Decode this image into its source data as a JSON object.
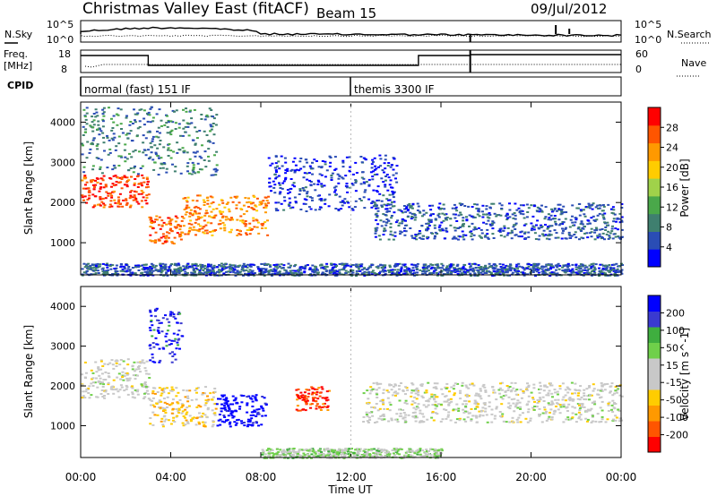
{
  "header": {
    "station": "Christmas Valley East (fitACF)",
    "beam": "Beam 15",
    "date": "09/Jul/2012"
  },
  "noise_panel": {
    "left_label": "N.Sky",
    "right_label": "N.Search",
    "left_ticks": [
      "10^5",
      "10^0"
    ],
    "right_ticks": [
      "10^5",
      "10^0"
    ]
  },
  "freq_panel": {
    "left_label_line1": "Freq.",
    "left_label_line2": "[MHz]",
    "right_label": "Nave",
    "left_ticks": [
      "18",
      "8"
    ],
    "right_ticks": [
      "60",
      "0"
    ]
  },
  "cpid_panel": {
    "label": "CPID",
    "modes": [
      {
        "name": "normal (fast) 151 IF",
        "start_hour": 0
      },
      {
        "name": "themis 3300 IF",
        "start_hour": 12
      }
    ]
  },
  "colors": {
    "power_scale": [
      "#0000ff",
      "#2a4db5",
      "#3f7f6f",
      "#4aa84a",
      "#a0d24a",
      "#ffcc00",
      "#ff9900",
      "#ff5500",
      "#ff0000"
    ],
    "velocity_scale": [
      "#ff0000",
      "#ff5500",
      "#ff9900",
      "#ffcc00",
      "#c8c8c8",
      "#c8c8c8",
      "#6fd04a",
      "#3fae3f",
      "#3a3ad0",
      "#0000ff"
    ],
    "ground_scatter": "#bebebe"
  },
  "chart_data": [
    {
      "type": "heatmap",
      "panel": "power",
      "ylabel": "Slant Range [km]",
      "xlim_hours": [
        0,
        24
      ],
      "ylim": [
        200,
        4500
      ],
      "yticks": [
        1000,
        2000,
        3000,
        4000
      ],
      "colorbar_label": "Power [dB]",
      "colorbar_ticks": [
        "4",
        "8",
        "12",
        "16",
        "20",
        "24",
        "28"
      ],
      "scatter_regions": [
        {
          "start_hour": 0.0,
          "end_hour": 3.0,
          "range_lo": 1900,
          "range_hi": 2700,
          "value": 28
        },
        {
          "start_hour": 3.0,
          "end_hour": 4.5,
          "range_lo": 1000,
          "range_hi": 1700,
          "value": 26
        },
        {
          "start_hour": 4.5,
          "end_hour": 8.3,
          "range_lo": 1200,
          "range_hi": 2200,
          "value": 24
        },
        {
          "start_hour": 0.0,
          "end_hour": 6.0,
          "range_lo": 2700,
          "range_hi": 4400,
          "value": 8
        },
        {
          "start_hour": 8.3,
          "end_hour": 14.0,
          "range_lo": 1800,
          "range_hi": 3200,
          "value": 4
        },
        {
          "start_hour": 13.0,
          "end_hour": 24.0,
          "range_lo": 1100,
          "range_hi": 2000,
          "value": 6
        },
        {
          "start_hour": 0.0,
          "end_hour": 24.0,
          "range_lo": 200,
          "range_hi": 500,
          "value": 6
        }
      ]
    },
    {
      "type": "heatmap",
      "panel": "velocity",
      "ylabel": "Slant Range [km]",
      "xlabel": "Time UT",
      "xlim_hours": [
        0,
        24
      ],
      "xticks": [
        "00:00",
        "04:00",
        "08:00",
        "12:00",
        "16:00",
        "20:00",
        "00:00"
      ],
      "ylim": [
        200,
        4500
      ],
      "yticks": [
        1000,
        2000,
        3000,
        4000
      ],
      "colorbar_label": "Velocity [m s^-1]",
      "colorbar_ticks": [
        "-200",
        "-100",
        "-50",
        "-15",
        "15",
        "50",
        "100",
        "200"
      ],
      "scatter_regions": [
        {
          "start_hour": 0.0,
          "end_hour": 3.0,
          "range_lo": 1700,
          "range_hi": 2700,
          "value": 0
        },
        {
          "start_hour": 3.0,
          "end_hour": 6.0,
          "range_lo": 1000,
          "range_hi": 2000,
          "value": -60
        },
        {
          "start_hour": 3.0,
          "end_hour": 4.5,
          "range_lo": 2600,
          "range_hi": 4000,
          "value": 200
        },
        {
          "start_hour": 6.0,
          "end_hour": 8.2,
          "range_lo": 1000,
          "range_hi": 1800,
          "value": 250
        },
        {
          "start_hour": 9.5,
          "end_hour": 11.0,
          "range_lo": 1400,
          "range_hi": 2000,
          "value": -200
        },
        {
          "start_hour": 12.5,
          "end_hour": 24.0,
          "range_lo": 1100,
          "range_hi": 2100,
          "value": 0
        },
        {
          "start_hour": 8.0,
          "end_hour": 16.0,
          "range_lo": 200,
          "range_hi": 450,
          "value": 50
        }
      ]
    }
  ]
}
